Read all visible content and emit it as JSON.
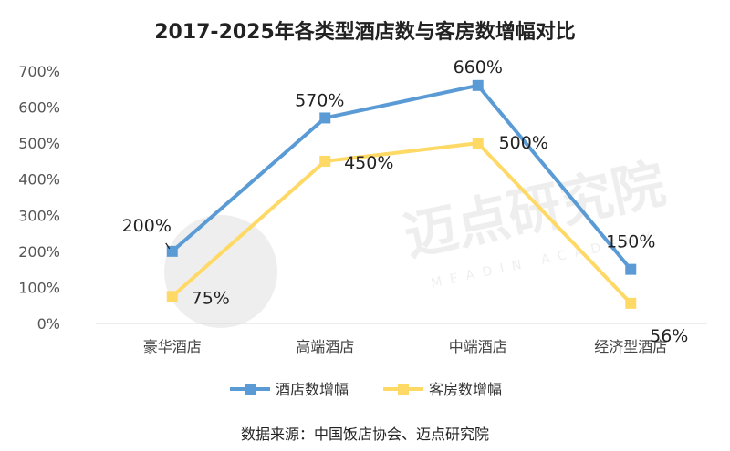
{
  "watermark": {
    "text": "迈点研究院",
    "subtext": "MEADIN ACADEMY"
  },
  "source": "数据来源：中国饭店协会、迈点研究院",
  "chart_data": {
    "type": "line",
    "title": "2017-2025年各类型酒店数与客房数增幅对比",
    "categories": [
      "豪华酒店",
      "高端酒店",
      "中端酒店",
      "经济型酒店"
    ],
    "y_ticks": [
      "0%",
      "100%",
      "200%",
      "300%",
      "400%",
      "500%",
      "600%",
      "700%"
    ],
    "ylim": [
      0,
      700
    ],
    "y_unit": "%",
    "grid": false,
    "legend_position": "bottom",
    "series": [
      {
        "name": "酒店数增幅",
        "values": [
          200,
          570,
          660,
          150
        ],
        "labels": [
          "200%",
          "570%",
          "660%",
          "150%"
        ],
        "color": "#5B9BD5",
        "marker": "square"
      },
      {
        "name": "客房数增幅",
        "values": [
          75,
          450,
          500,
          56
        ],
        "labels": [
          "75%",
          "450%",
          "500%",
          "56%"
        ],
        "color": "#FFD966",
        "marker": "square"
      }
    ]
  }
}
